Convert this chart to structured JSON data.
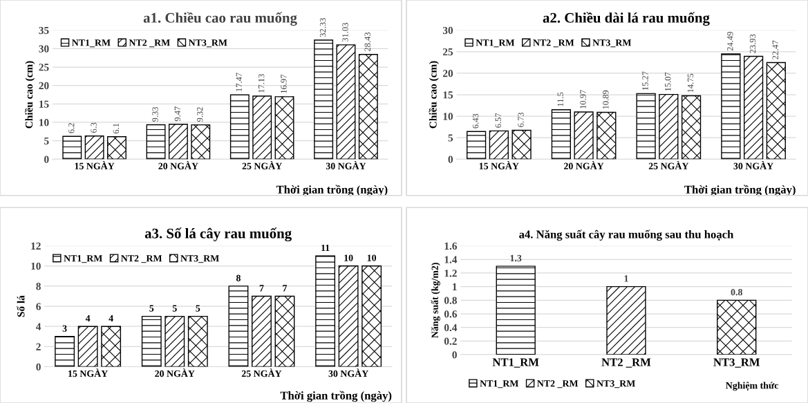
{
  "chart_data": [
    {
      "type": "bar",
      "title": "a1. Chiều cao rau muống",
      "ylabel": "Chiều cao (cm)",
      "xlabel": "Thời gian trồng (ngày)",
      "categories": [
        "15 NGÀY",
        "20 NGÀY",
        "25 NGÀY",
        "30 NGÀY"
      ],
      "series": [
        {
          "name": "NT1_RM",
          "color": "#000000",
          "values": [
            6.2,
            9.33,
            17.47,
            32.33
          ]
        },
        {
          "name": "NT2 _RM",
          "color": "#000000",
          "values": [
            6.3,
            9.47,
            17.13,
            31.03
          ]
        },
        {
          "name": "NT3_RM",
          "color": "#000000",
          "values": [
            6.1,
            9.32,
            16.97,
            28.43
          ]
        }
      ],
      "ylim": [
        0,
        35
      ],
      "yticks": [
        0,
        5,
        10,
        15,
        20,
        25,
        30,
        35
      ],
      "grid": "y",
      "legend": "top left",
      "data_labels": true
    },
    {
      "type": "bar",
      "title": "a2. Chiều dài lá rau muống",
      "ylabel": "Chiều cao (cm)",
      "xlabel": "Thời gian trồng (ngày)",
      "categories": [
        "15 NGÀY",
        "20 NGÀY",
        "25 NGÀY",
        "30 NGÀY"
      ],
      "series": [
        {
          "name": "NT1_RM",
          "color": "#000000",
          "values": [
            6.43,
            11.5,
            15.27,
            24.49
          ]
        },
        {
          "name": "NT2 _RM",
          "color": "#000000",
          "values": [
            6.57,
            10.97,
            15.07,
            23.93
          ]
        },
        {
          "name": "NT3_RM",
          "color": "#000000",
          "values": [
            6.73,
            10.89,
            14.75,
            22.47
          ]
        }
      ],
      "ylim": [
        0,
        30
      ],
      "yticks": [
        0,
        5,
        10,
        15,
        20,
        25,
        30
      ],
      "grid": "y",
      "legend": "top left",
      "data_labels": true
    },
    {
      "type": "bar",
      "title": "a3. Số lá cây rau muống",
      "ylabel": "Số lá",
      "xlabel": "Thời gian trồng (ngày)",
      "categories": [
        "15 NGÀY",
        "20 NGÀY",
        "25 NGÀY",
        "30 NGÀY"
      ],
      "series": [
        {
          "name": "NT1_RM",
          "color": "#000000",
          "values": [
            3,
            5,
            8,
            11
          ]
        },
        {
          "name": "NT2 _RM",
          "color": "#000000",
          "values": [
            4,
            5,
            7,
            10
          ]
        },
        {
          "name": "NT3_RM",
          "color": "#000000",
          "values": [
            4,
            5,
            7,
            10
          ]
        }
      ],
      "ylim": [
        0,
        12
      ],
      "yticks": [
        0,
        2,
        4,
        6,
        8,
        10,
        12
      ],
      "grid": "y",
      "legend": "top left",
      "data_labels": true
    },
    {
      "type": "bar",
      "title": "a4. Năng suất cây rau muống sau thu hoạch",
      "ylabel": "Năng suất (kg/m2)",
      "xlabel": "Nghiệm thức",
      "categories": [
        "NT1_RM",
        "NT2 _RM",
        "NT3_RM"
      ],
      "stacked": true,
      "series": [
        {
          "name": "NT1_RM",
          "color": "#000000",
          "values": [
            1.3,
            null,
            null
          ]
        },
        {
          "name": "NT2 _RM",
          "color": "#000000",
          "values": [
            null,
            1,
            null
          ]
        },
        {
          "name": "NT3_RM",
          "color": "#000000",
          "values": [
            null,
            null,
            0.8
          ]
        }
      ],
      "ylim": [
        0,
        1.6
      ],
      "yticks": [
        0,
        0.2,
        0.4,
        0.6,
        0.8,
        1,
        1.2,
        1.4,
        1.6
      ],
      "grid": "y",
      "legend": "bottom left",
      "data_labels": true
    }
  ]
}
